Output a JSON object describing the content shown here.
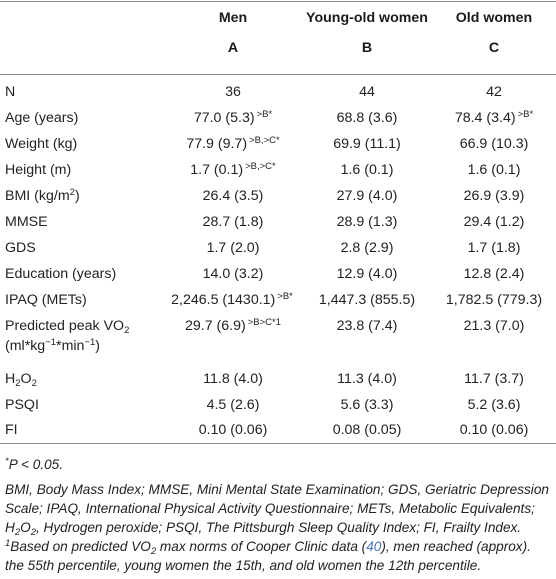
{
  "header": {
    "colA": {
      "name": "Men",
      "letter": "A"
    },
    "colB": {
      "name": "Young-old women",
      "letter": "B"
    },
    "colC": {
      "name": "Old women",
      "letter": "C"
    }
  },
  "rows": {
    "n": {
      "label": "N",
      "a": "36",
      "b": "44",
      "c": "42"
    },
    "age": {
      "label": "Age (years)",
      "a": "77.0 (5.3)",
      "a_sup": ">B*",
      "b": "68.8 (3.6)",
      "c": "78.4 (3.4)",
      "c_sup": ">B*"
    },
    "weight": {
      "label": "Weight (kg)",
      "a": "77.9 (9.7)",
      "a_sup": ">B,>C*",
      "b": "69.9 (11.1)",
      "c": "66.9 (10.3)"
    },
    "height": {
      "label": "Height (m)",
      "a": "1.7 (0.1)",
      "a_sup": ">B,>C*",
      "b": "1.6 (0.1)",
      "c": "1.6 (0.1)"
    },
    "bmi": {
      "label_pre": "BMI (kg/m",
      "label_sup": "2",
      "label_post": ")",
      "a": "26.4 (3.5)",
      "b": "27.9 (4.0)",
      "c": "26.9 (3.9)"
    },
    "mmse": {
      "label": "MMSE",
      "a": "28.7 (1.8)",
      "b": "28.9 (1.3)",
      "c": "29.4 (1.2)"
    },
    "gds": {
      "label": "GDS",
      "a": "1.7 (2.0)",
      "b": "2.8 (2.9)",
      "c": "1.7 (1.8)"
    },
    "education": {
      "label": "Education (years)",
      "a": "14.0 (3.2)",
      "b": "12.9 (4.0)",
      "c": "12.8 (2.4)"
    },
    "ipaq": {
      "label": "IPAQ (METs)",
      "a": "2,246.5 (1430.1)",
      "a_sup": ">B*",
      "b": "1,447.3 (855.5)",
      "c": "1,782.5 (779.3)"
    },
    "vo2": {
      "label_l1_pre": "Predicted peak VO",
      "label_l1_sub": "2",
      "label_l2_pre": "(ml*kg",
      "label_l2_sup1": "−1",
      "label_l2_mid": "*min",
      "label_l2_sup2": "−1",
      "label_l2_post": ")",
      "a": "29.7 (6.9)",
      "a_sup": ">B>C*1",
      "b": "23.8 (7.4)",
      "c": "21.3 (7.0)"
    },
    "h2o2": {
      "label_h": "H",
      "label_sub1": "2",
      "label_o": "O",
      "label_sub2": "2",
      "a": "11.8 (4.0)",
      "b": "11.3 (4.0)",
      "c": "11.7 (3.7)"
    },
    "psqi": {
      "label": "PSQI",
      "a": "4.5 (2.6)",
      "b": "5.6 (3.3)",
      "c": "5.2 (3.6)"
    },
    "fi": {
      "label": "FI",
      "a": "0.10 (0.06)",
      "b": "0.08 (0.05)",
      "c": "0.10 (0.06)"
    }
  },
  "footnotes": {
    "sig_mark": "*",
    "sig_text": "P < 0.05.",
    "abbrev_1": "BMI, Body Mass Index; MMSE, Mini Mental State Examination; GDS, Geriatric Depression",
    "abbrev_2": "Scale; IPAQ, International Physical Activity Questionnaire; METs, Metabolic Equivalents;",
    "abbrev_3_h": "H",
    "abbrev_3_sub1": "2",
    "abbrev_3_o": "O",
    "abbrev_3_sub2": "2",
    "abbrev_3_rest": ", Hydrogen peroxide; PSQI, The Pittsburgh Sleep Quality Index; FI, Frailty Index.",
    "note_mark": "1",
    "note_1_pre": "Based on predicted VO",
    "note_1_sub": "2",
    "note_1_mid": " max norms of Cooper Clinic data (",
    "note_1_cite": "40",
    "note_1_post": "), men reached (approx).",
    "note_2": "the 55th percentile, young women the 15th, and old women the 12th percentile."
  },
  "colors": {
    "rule": "#8c8c8c",
    "text": "#222222",
    "citation_link": "#4a72b8"
  }
}
